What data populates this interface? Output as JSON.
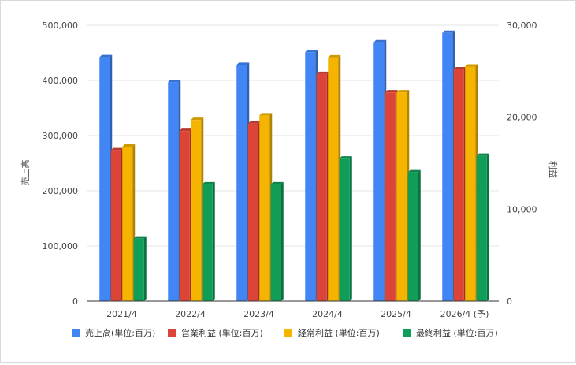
{
  "chart_data": {
    "type": "bar",
    "categories": [
      "2021/4",
      "2022/4",
      "2023/4",
      "2024/4",
      "2025/4",
      "2026/4 (予)"
    ],
    "ylabel_left": "売上高",
    "ylabel_right": "利益",
    "ylim_left": [
      0,
      500000
    ],
    "ylim_right": [
      0,
      30000
    ],
    "yticks_left": [
      "0",
      "100,000",
      "200,000",
      "300,000",
      "400,000",
      "500,000"
    ],
    "yticks_right": [
      "0",
      "10,000",
      "20,000",
      "30,000"
    ],
    "grid": true,
    "legend_position": "bottom",
    "series": [
      {
        "name": "売上高(単位:百万)",
        "axis": "left",
        "color": "#4285f4",
        "values": [
          442000,
          397000,
          428000,
          451000,
          469000,
          486000
        ]
      },
      {
        "name": "営業利益 (単位:百万)",
        "axis": "right",
        "color": "#db4437",
        "values": [
          16400,
          18500,
          19300,
          24700,
          22700,
          25200
        ]
      },
      {
        "name": "経常利益 (単位:百万)",
        "axis": "right",
        "color": "#f4b400",
        "values": [
          16800,
          19700,
          20200,
          26500,
          22700,
          25500
        ]
      },
      {
        "name": "最終利益 (単位:百万)",
        "axis": "right",
        "color": "#0f9d58",
        "values": [
          6800,
          12700,
          12700,
          15500,
          14000,
          15800
        ]
      }
    ]
  }
}
